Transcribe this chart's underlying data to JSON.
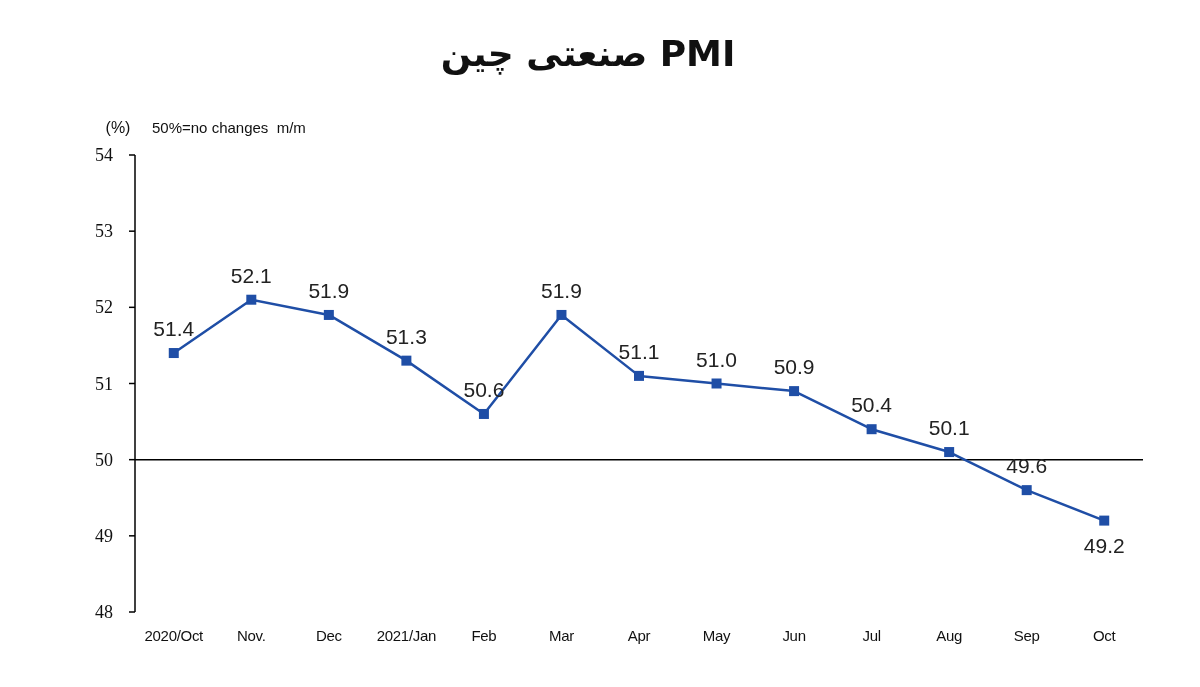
{
  "chart_data": {
    "type": "line",
    "title": "PMI صنعتی چین",
    "ylabel": "(%)",
    "annotations": [
      "50%=no changes  m/m"
    ],
    "categories": [
      "2020/Oct",
      "Nov.",
      "Dec",
      "2021/Jan",
      "Feb",
      "Mar",
      "Apr",
      "May",
      "Jun",
      "Jul",
      "Aug",
      "Sep",
      "Oct"
    ],
    "series": [
      {
        "color": "#1f4ea6",
        "values": [
          51.4,
          52.1,
          51.9,
          51.3,
          50.6,
          51.9,
          51.1,
          51.0,
          50.9,
          50.4,
          50.1,
          49.6,
          49.2
        ],
        "value_labels": [
          "51.4",
          "52.1",
          "51.9",
          "51.3",
          "50.6",
          "51.9",
          "51.1",
          "51.0",
          "50.9",
          "50.4",
          "50.1",
          "49.6",
          "49.2"
        ]
      }
    ],
    "ylim": [
      48,
      54
    ],
    "yticks": [
      48,
      49,
      50,
      51,
      52,
      53,
      54
    ],
    "ref_lines": [
      {
        "axis": "y",
        "value": 50,
        "color": "#000000"
      }
    ],
    "marker": "square",
    "line_style": "solid"
  }
}
